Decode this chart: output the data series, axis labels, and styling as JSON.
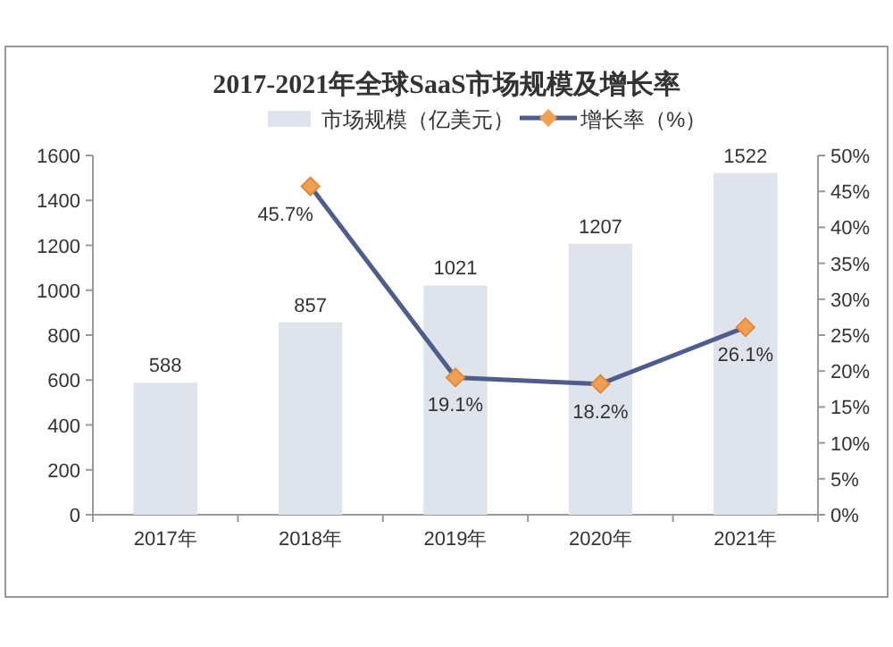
{
  "chart_data": {
    "type": "bar",
    "title": "2017-2021年全球SaaS市场规模及增长率",
    "categories": [
      "2017年",
      "2018年",
      "2019年",
      "2020年",
      "2021年"
    ],
    "series": [
      {
        "name": "市场规模（亿美元）",
        "color": "#dfe3ec",
        "values": [
          588,
          857,
          1021,
          1207,
          1522
        ],
        "value_labels": [
          "588",
          "857",
          "1021",
          "1207",
          "1522"
        ]
      },
      {
        "name": "增长率（%）",
        "type": "line",
        "axis": "y2",
        "color": "#4f5d8c",
        "marker": "diamond",
        "values": [
          null,
          45.7,
          19.1,
          18.2,
          26.1
        ],
        "value_labels": [
          null,
          "45.7%",
          "19.1%",
          "18.2%",
          "26.1%"
        ]
      }
    ],
    "ylim": [
      0,
      1600
    ],
    "yticks": [
      0,
      200,
      400,
      600,
      800,
      1000,
      1200,
      1400,
      1600
    ],
    "y2lim": [
      0,
      50
    ],
    "y2ticks": [
      {
        "value": 0,
        "label": "0%"
      },
      {
        "value": 5,
        "label": "5%"
      },
      {
        "value": 10,
        "label": "10%"
      },
      {
        "value": 15,
        "label": "15%"
      },
      {
        "value": 20,
        "label": "20%"
      },
      {
        "value": 25,
        "label": "25%"
      },
      {
        "value": 30,
        "label": "30%"
      },
      {
        "value": 35,
        "label": "35%"
      },
      {
        "value": 40,
        "label": "40%"
      },
      {
        "value": 45,
        "label": "45%"
      },
      {
        "value": 50,
        "label": "50%"
      }
    ],
    "grid": false,
    "legend": "top"
  }
}
